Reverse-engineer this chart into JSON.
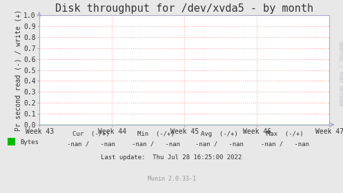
{
  "title": "Disk throughput for /dev/xvda5 - by month",
  "ylabel": "Pr second read (-) / write (+)",
  "xlim": [
    0,
    1
  ],
  "ylim": [
    0.0,
    1.0
  ],
  "yticks": [
    0.0,
    0.1,
    0.2,
    0.3,
    0.4,
    0.5,
    0.6,
    0.7,
    0.8,
    0.9,
    1.0
  ],
  "xtick_labels": [
    "Week 43",
    "Week 44",
    "Week 45",
    "Week 46",
    "Week 47"
  ],
  "xtick_positions": [
    0.0,
    0.25,
    0.5,
    0.75,
    1.0
  ],
  "bg_color": "#e8e8e8",
  "plot_bg_color": "#ffffff",
  "grid_color": "#ffaaaa",
  "title_fontsize": 11,
  "axis_label_fontsize": 7,
  "tick_fontsize": 7,
  "legend_color": "#00bb00",
  "arrow_color": "#aaaacc",
  "border_color": "#aaaacc",
  "footer_fontsize": 6.5,
  "munin_fontsize": 6.0,
  "rrdtool_label": "RRDTOOL / TOBI OETIKER",
  "footer_lines": [
    [
      "        Cur (-/+)",
      "        Min (-/+)",
      "        Avg (-/+)",
      "        Max (-/+)"
    ],
    [
      "-nan /   -nan",
      "-nan /   -nan",
      "-nan /   -nan",
      "-nan /   -nan"
    ]
  ],
  "legend_label": "Bytes",
  "last_update": "Last update:  Thu Jul 28 16:25:00 2022",
  "munin_version": "Munin 2.0.33-1"
}
